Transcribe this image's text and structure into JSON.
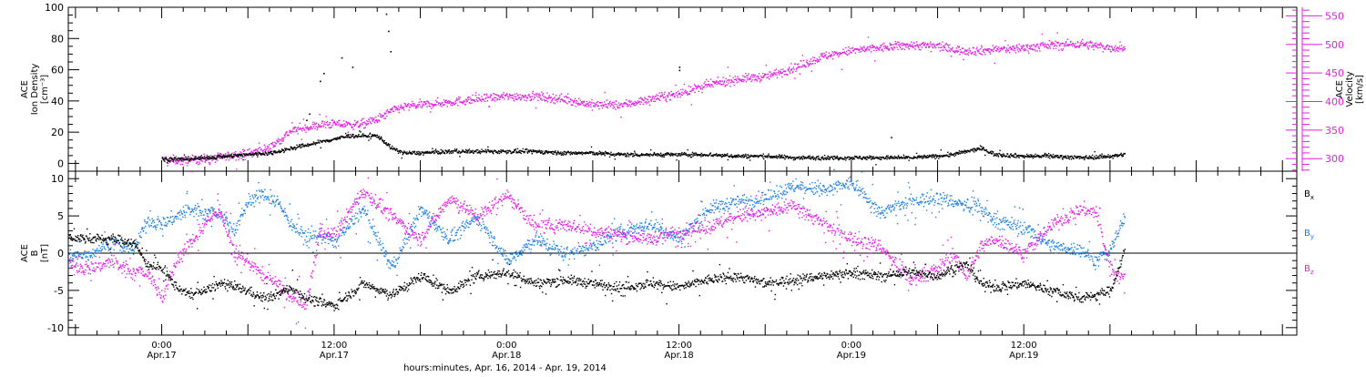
{
  "chart_data": [
    {
      "type": "scatter",
      "panel": "top",
      "left_ylabel": [
        "ACE",
        "Ion Density",
        "[cm⁻³]"
      ],
      "right_ylabel": [
        "ACE",
        "Velocity",
        "[km/s]"
      ],
      "ylim_left": [
        -5,
        100
      ],
      "left_ticks": [
        "0",
        "20",
        "40",
        "60",
        "80",
        "100"
      ],
      "left_tick_values": [
        0,
        20,
        40,
        60,
        80,
        100
      ],
      "ylim_right": [
        278,
        565
      ],
      "right_ticks": [
        "300",
        "350",
        "400",
        "450",
        "500",
        "550"
      ],
      "right_tick_values": [
        300,
        350,
        400,
        450,
        500,
        550
      ],
      "series": [
        {
          "color": "#000000",
          "axis": "left",
          "x_hours": [
            0,
            3,
            6,
            9,
            12,
            15,
            18,
            20,
            22,
            24,
            26,
            28,
            30,
            32,
            33,
            34,
            36,
            40,
            44,
            48,
            52,
            56,
            60,
            64,
            68,
            72,
            76,
            80,
            84,
            88,
            92,
            96,
            100,
            104,
            108,
            110,
            112,
            114,
            116,
            120,
            124,
            128,
            132,
            134
          ],
          "y": [
            3,
            3,
            4,
            5,
            6,
            7,
            10,
            12,
            14,
            16,
            18,
            18,
            18,
            10,
            8,
            7,
            7,
            8,
            8,
            8,
            8,
            7,
            7,
            6,
            6,
            6,
            6,
            5,
            5,
            4,
            4,
            4,
            4,
            4,
            5,
            6,
            8,
            10,
            6,
            5,
            5,
            4,
            5,
            6
          ]
        },
        {
          "color": "#e81ce8",
          "axis": "right",
          "x_hours": [
            0,
            3,
            6,
            9,
            12,
            15,
            18,
            20,
            22,
            24,
            26,
            28,
            30,
            32,
            33,
            34,
            36,
            40,
            44,
            48,
            52,
            56,
            60,
            64,
            68,
            72,
            76,
            80,
            84,
            88,
            92,
            96,
            100,
            104,
            108,
            110,
            112,
            114,
            116,
            120,
            124,
            128,
            132,
            134
          ],
          "y": [
            300,
            297,
            300,
            305,
            310,
            320,
            350,
            355,
            360,
            362,
            360,
            362,
            370,
            385,
            390,
            392,
            395,
            400,
            405,
            410,
            410,
            405,
            395,
            395,
            405,
            415,
            430,
            440,
            445,
            460,
            480,
            490,
            495,
            500,
            498,
            492,
            490,
            490,
            492,
            495,
            500,
            502,
            495,
            495
          ]
        }
      ],
      "spikes": [
        {
          "x": 20.1,
          "y": 28
        },
        {
          "x": 22.5,
          "y": 58
        },
        {
          "x": 25.0,
          "y": 68
        },
        {
          "x": 26.5,
          "y": 62
        },
        {
          "x": 31.2,
          "y": 96
        },
        {
          "x": 31.5,
          "y": 85
        },
        {
          "x": 31.8,
          "y": 72
        },
        {
          "x": 22.0,
          "y": 53
        },
        {
          "x": 20.5,
          "y": 32
        },
        {
          "x": 72.0,
          "y": 60
        },
        {
          "x": 72.0,
          "y": 62
        },
        {
          "x": 101.5,
          "y": 17
        }
      ]
    },
    {
      "type": "scatter",
      "panel": "bottom",
      "left_ylabel": [
        "ACE",
        "B",
        "[nT]"
      ],
      "ylim": [
        -11,
        11
      ],
      "left_ticks": [
        "-10",
        "-5",
        "0",
        "5",
        "10"
      ],
      "left_tick_values": [
        -10,
        -5,
        0,
        5,
        10
      ],
      "zero_line": true,
      "xlabel": "hours:minutes, Apr. 16, 2014 - Apr. 19, 2014",
      "x_range_hours": [
        -13,
        158
      ],
      "x_ticks": [
        {
          "hour": 0,
          "time": "0:00",
          "date": "Apr.17"
        },
        {
          "hour": 24,
          "time": "12:00",
          "date": "Apr.17"
        },
        {
          "hour": 48,
          "time": "0:00",
          "date": "Apr.18"
        },
        {
          "hour": 72,
          "time": "12:00",
          "date": "Apr.18"
        },
        {
          "hour": 96,
          "time": "0:00",
          "date": "Apr.19"
        },
        {
          "hour": 120,
          "time": "12:00",
          "date": "Apr.19"
        }
      ],
      "legend_position": "right",
      "series": [
        {
          "name": "Bx",
          "label_main": "B",
          "label_sub": "x",
          "color": "#000000",
          "x_hours": [
            -13,
            -10,
            -7,
            -4,
            -2,
            0,
            2,
            4,
            6,
            8,
            10,
            12,
            14,
            16,
            18,
            20,
            22,
            24,
            28,
            32,
            36,
            40,
            44,
            48,
            52,
            56,
            60,
            64,
            68,
            72,
            76,
            80,
            84,
            88,
            92,
            96,
            100,
            104,
            108,
            110,
            112,
            114,
            116,
            120,
            124,
            128,
            130,
            132,
            134
          ],
          "y": [
            2.2,
            2.0,
            2.0,
            1.5,
            -1.5,
            -2.0,
            -4.5,
            -5.5,
            -5.0,
            -4.0,
            -4.5,
            -5.0,
            -6.0,
            -5.5,
            -4.5,
            -6.0,
            -6.5,
            -7.0,
            -4.0,
            -5.5,
            -3.0,
            -5.0,
            -3.0,
            -2.5,
            -4.0,
            -3.5,
            -4.0,
            -4.5,
            -4.0,
            -4.5,
            -3.5,
            -3.0,
            -4.0,
            -3.5,
            -3.0,
            -2.5,
            -3.0,
            -2.5,
            -3.0,
            -2.0,
            -1.5,
            -4.0,
            -4.5,
            -4.0,
            -5.0,
            -6.0,
            -5.5,
            -5.0,
            0.5
          ]
        },
        {
          "name": "By",
          "label_main": "B",
          "label_sub": "y",
          "color": "#1c7fe8",
          "x_hours": [
            -13,
            -10,
            -7,
            -4,
            -2,
            0,
            2,
            4,
            6,
            8,
            10,
            12,
            14,
            16,
            18,
            20,
            22,
            24,
            28,
            32,
            36,
            40,
            44,
            48,
            52,
            56,
            60,
            64,
            68,
            72,
            76,
            80,
            84,
            88,
            92,
            96,
            100,
            104,
            108,
            110,
            112,
            114,
            116,
            120,
            124,
            128,
            130,
            132,
            134
          ],
          "y": [
            -0.5,
            0.0,
            1.5,
            0.5,
            4.5,
            4.0,
            5.0,
            6.0,
            5.5,
            5.5,
            3.0,
            7.0,
            8.0,
            7.0,
            4.0,
            2.0,
            2.5,
            1.5,
            6.0,
            -2.0,
            6.0,
            2.0,
            5.0,
            -1.0,
            2.0,
            0.0,
            1.0,
            3.0,
            4.0,
            2.0,
            6.0,
            7.0,
            7.5,
            9.0,
            8.5,
            9.5,
            5.5,
            7.0,
            7.5,
            7.0,
            6.5,
            6.0,
            4.5,
            3.5,
            1.0,
            0.5,
            -1.0,
            0.5,
            5.0
          ]
        },
        {
          "name": "Bz",
          "label_main": "B",
          "label_sub": "z",
          "color": "#e81ce8",
          "x_hours": [
            -13,
            -10,
            -7,
            -4,
            -2,
            0,
            2,
            4,
            6,
            8,
            10,
            12,
            14,
            16,
            18,
            20,
            22,
            24,
            28,
            32,
            36,
            40,
            44,
            48,
            52,
            56,
            60,
            64,
            68,
            72,
            76,
            80,
            84,
            88,
            92,
            96,
            100,
            104,
            108,
            110,
            112,
            114,
            116,
            120,
            124,
            128,
            130,
            132,
            134
          ],
          "y": [
            -1.5,
            -2.0,
            -1.0,
            -2.5,
            -2.5,
            -6.0,
            -1.0,
            1.5,
            4.0,
            6.0,
            0.0,
            -1.0,
            -3.0,
            -4.0,
            -6.0,
            -7.0,
            3.0,
            2.5,
            8.5,
            5.0,
            2.0,
            7.5,
            5.0,
            8.0,
            3.5,
            4.0,
            3.0,
            2.5,
            2.0,
            3.0,
            3.5,
            5.0,
            5.5,
            6.5,
            4.0,
            2.0,
            1.0,
            -3.5,
            -2.0,
            0.0,
            -3.0,
            1.0,
            2.0,
            0.0,
            4.0,
            6.0,
            5.5,
            -2.0,
            -3.5
          ]
        }
      ]
    }
  ]
}
